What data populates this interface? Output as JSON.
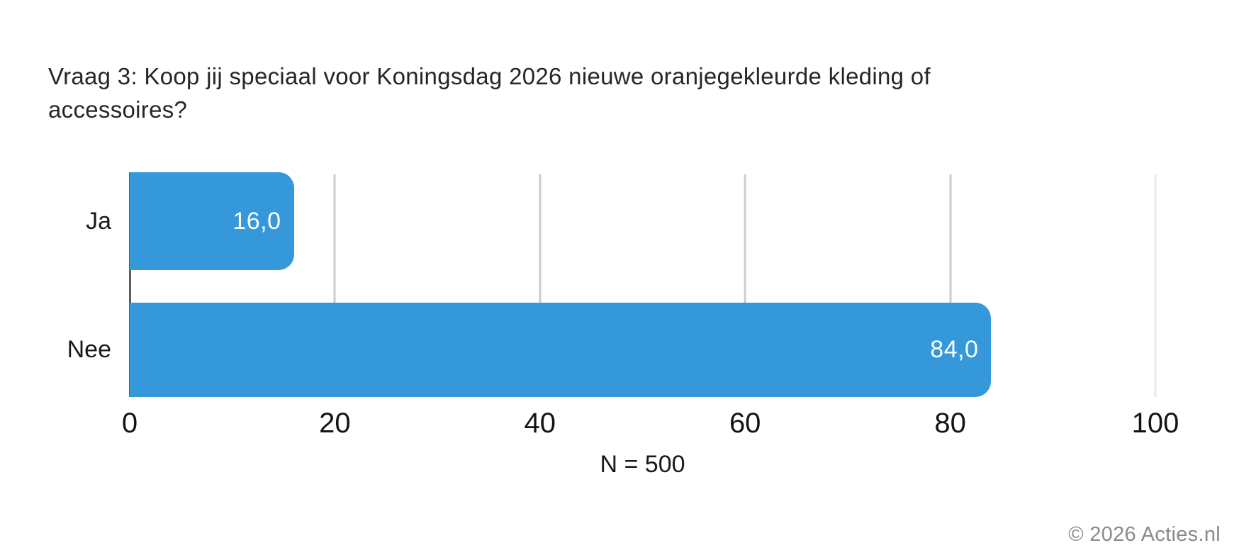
{
  "header": {
    "title_line1": "Vraag 3: Koop jij speciaal voor Koningsdag 2026 nieuwe oranjegekleurde kleding of",
    "title_line2": "accessoires?"
  },
  "chart_data": {
    "type": "bar",
    "orientation": "horizontal",
    "title": "Vraag 3: Koop jij speciaal voor Koningsdag 2026 nieuwe oranjegekleurde kleding of accessoires?",
    "categories": [
      "Ja",
      "Nee"
    ],
    "values": [
      16.0,
      84.0
    ],
    "value_labels": [
      "16,0",
      "84,0"
    ],
    "xlim": [
      0,
      100
    ],
    "x_ticks": [
      0,
      20,
      40,
      60,
      80,
      100
    ],
    "x_tick_labels": [
      "0",
      "20",
      "40",
      "60",
      "80",
      "100"
    ],
    "caption": "N = 500",
    "bar_color": "#3498db",
    "grid": true,
    "gridline_color": "#cbcbcb",
    "axis_line_color": "#5f5f5f",
    "value_label_color": "#ffffff",
    "legend": "none"
  },
  "footer": {
    "copyright": "© 2026 Acties.nl"
  }
}
